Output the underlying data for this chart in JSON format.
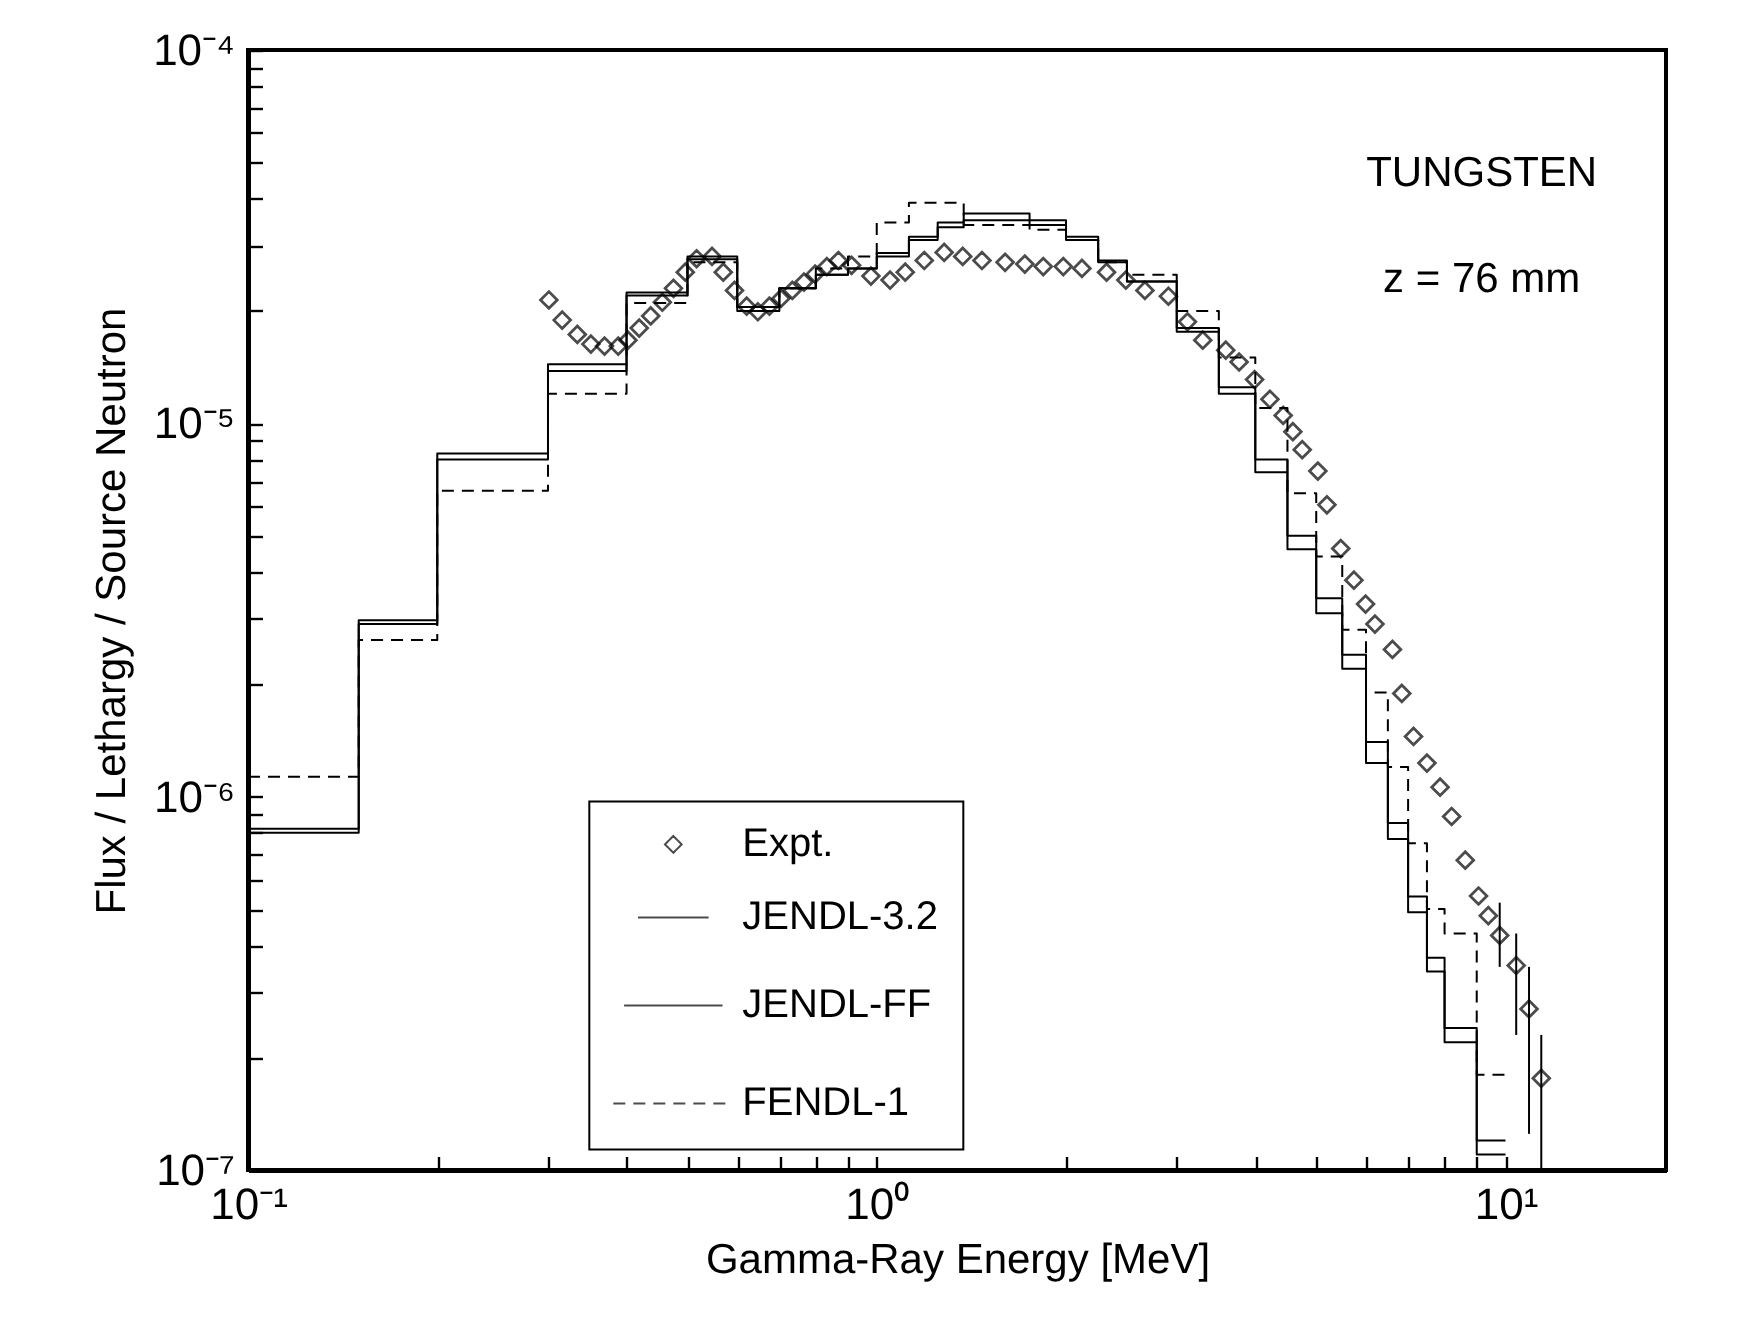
{
  "chart_data": {
    "type": "step",
    "xlabel": "Gamma-Ray Energy [MeV]",
    "ylabel": "Flux / Lethargy / Source Neutron",
    "annotations": [
      "TUNGSTEN",
      "z = 76 mm"
    ],
    "log": "xy",
    "grid": false,
    "legend": "bottom",
    "xlim": [
      0.1,
      18
    ],
    "ylim": [
      1e-07,
      0.0001
    ],
    "xticks": [
      {
        "value": 0.1,
        "label": "10⁻¹"
      },
      {
        "value": 0.2,
        "label": null
      },
      {
        "value": 0.3,
        "label": null
      },
      {
        "value": 0.4,
        "label": null
      },
      {
        "value": 0.5,
        "label": null
      },
      {
        "value": 0.6,
        "label": null
      },
      {
        "value": 0.7,
        "label": null
      },
      {
        "value": 0.8,
        "label": null
      },
      {
        "value": 0.9,
        "label": null
      },
      {
        "value": 1,
        "label": "10⁰"
      },
      {
        "value": 2,
        "label": null
      },
      {
        "value": 3,
        "label": null
      },
      {
        "value": 4,
        "label": null
      },
      {
        "value": 5,
        "label": null
      },
      {
        "value": 6,
        "label": null
      },
      {
        "value": 7,
        "label": null
      },
      {
        "value": 8,
        "label": null
      },
      {
        "value": 9,
        "label": null
      },
      {
        "value": 10,
        "label": "10¹"
      }
    ],
    "yticks": [
      {
        "value": 1e-07,
        "label": "10⁻⁷"
      },
      {
        "value": 2e-07,
        "label": null
      },
      {
        "value": 3e-07,
        "label": null
      },
      {
        "value": 4e-07,
        "label": null
      },
      {
        "value": 5e-07,
        "label": null
      },
      {
        "value": 6e-07,
        "label": null
      },
      {
        "value": 7e-07,
        "label": null
      },
      {
        "value": 8e-07,
        "label": null
      },
      {
        "value": 9e-07,
        "label": null
      },
      {
        "value": 1e-06,
        "label": "10⁻⁶"
      },
      {
        "value": 2e-06,
        "label": null
      },
      {
        "value": 3e-06,
        "label": null
      },
      {
        "value": 4e-06,
        "label": null
      },
      {
        "value": 5e-06,
        "label": null
      },
      {
        "value": 6e-06,
        "label": null
      },
      {
        "value": 7e-06,
        "label": null
      },
      {
        "value": 8e-06,
        "label": null
      },
      {
        "value": 9e-06,
        "label": null
      },
      {
        "value": 1e-05,
        "label": "10⁻⁵"
      },
      {
        "value": 2e-05,
        "label": null
      },
      {
        "value": 3e-05,
        "label": null
      },
      {
        "value": 4e-05,
        "label": null
      },
      {
        "value": 5e-05,
        "label": null
      },
      {
        "value": 6e-05,
        "label": null
      },
      {
        "value": 7e-05,
        "label": null
      },
      {
        "value": 8e-05,
        "label": null
      },
      {
        "value": 9e-05,
        "label": null
      },
      {
        "value": 0.0001,
        "label": "10⁻⁴"
      }
    ],
    "series": [
      {
        "name": "Expt.",
        "type": "scatter",
        "marker": "diamond",
        "color": "#000000",
        "x": [
          0.301,
          0.316,
          0.334,
          0.351,
          0.369,
          0.388,
          0.402,
          0.419,
          0.437,
          0.456,
          0.475,
          0.496,
          0.517,
          0.547,
          0.57,
          0.594,
          0.621,
          0.647,
          0.675,
          0.704,
          0.734,
          0.766,
          0.798,
          0.833,
          0.869,
          0.912,
          0.979,
          1.05,
          1.11,
          1.19,
          1.28,
          1.37,
          1.47,
          1.6,
          1.72,
          1.84,
          1.98,
          2.12,
          2.32,
          2.49,
          2.67,
          2.91,
          3.12,
          3.3,
          3.59,
          3.77,
          3.99,
          4.22,
          4.43,
          4.59,
          4.75,
          5.03,
          5.2,
          5.47,
          5.74,
          5.99,
          6.2,
          6.61,
          6.84,
          7.14,
          7.5,
          7.87,
          8.21,
          8.63,
          9.06,
          9.39,
          9.79,
          10.4,
          10.9,
          11.4
        ],
        "values": [
          2.14e-05,
          1.89e-05,
          1.73e-05,
          1.63e-05,
          1.61e-05,
          1.61e-05,
          1.67e-05,
          1.8e-05,
          1.94e-05,
          2.11e-05,
          2.3e-05,
          2.54e-05,
          2.76e-05,
          2.8e-05,
          2.54e-05,
          2.27e-05,
          2.06e-05,
          1.99e-05,
          2.06e-05,
          2.16e-05,
          2.27e-05,
          2.39e-05,
          2.51e-05,
          2.63e-05,
          2.73e-05,
          2.65e-05,
          2.48e-05,
          2.42e-05,
          2.54e-05,
          2.73e-05,
          2.87e-05,
          2.8e-05,
          2.73e-05,
          2.7e-05,
          2.67e-05,
          2.63e-05,
          2.63e-05,
          2.6e-05,
          2.54e-05,
          2.42e-05,
          2.27e-05,
          2.19e-05,
          1.87e-05,
          1.67e-05,
          1.57e-05,
          1.46e-05,
          1.31e-05,
          1.16e-05,
          1.05e-05,
          9.5e-06,
          8.5e-06,
          7.45e-06,
          6.05e-06,
          4.62e-06,
          3.8e-06,
          3.28e-06,
          2.9e-06,
          2.48e-06,
          1.89e-06,
          1.45e-06,
          1.23e-06,
          1.06e-06,
          8.85e-07,
          6.76e-07,
          5.42e-07,
          4.8e-07,
          4.25e-07,
          3.53e-07,
          2.7e-07,
          1.76e-07
        ],
        "errors": [
          null,
          null,
          null,
          null,
          null,
          null,
          null,
          null,
          null,
          null,
          null,
          null,
          null,
          null,
          null,
          null,
          null,
          null,
          null,
          null,
          null,
          null,
          null,
          null,
          null,
          null,
          null,
          null,
          null,
          null,
          null,
          null,
          null,
          null,
          null,
          null,
          null,
          null,
          null,
          null,
          null,
          null,
          null,
          null,
          null,
          null,
          null,
          null,
          null,
          null,
          null,
          null,
          null,
          null,
          null,
          null,
          null,
          null,
          null,
          null,
          null,
          null,
          null,
          null,
          null,
          null,
          [
            3.5e-07,
            5.2e-07
          ],
          [
            2.3e-07,
            4.3e-07
          ],
          [
            1.25e-07,
            3.5e-07
          ],
          [
            1e-07,
            2.3e-07
          ]
        ]
      },
      {
        "name": "JENDL-3.2",
        "type": "step",
        "line_style": "solid",
        "color": "#000000",
        "x": [
          0.1,
          0.15,
          0.2,
          0.3,
          0.4,
          0.5,
          0.6,
          0.7,
          0.8,
          0.9,
          1.0,
          1.125,
          1.25,
          1.375,
          1.75,
          2.0,
          2.25,
          2.5,
          3.0,
          3.5,
          4.0,
          4.5,
          5.0,
          5.5,
          6.0,
          6.5,
          7.0,
          7.5,
          8.0,
          9.0,
          10.0
        ],
        "values": [
          8.2e-07,
          2.9e-06,
          8e-06,
          1.38e-05,
          2.2e-05,
          2.75e-05,
          2.05e-05,
          2.3e-05,
          2.5e-05,
          2.6e-05,
          2.8e-05,
          3.1e-05,
          3.35e-05,
          3.5e-05,
          3.4e-05,
          3.1e-05,
          2.7e-05,
          2.4e-05,
          1.8e-05,
          1.25e-05,
          8e-06,
          5e-06,
          3.4e-06,
          2.4e-06,
          1.4e-06,
          8.5e-07,
          5.4e-07,
          3.7e-07,
          2.4e-07,
          1.2e-07,
          1.2e-07
        ]
      },
      {
        "name": "JENDL-FF",
        "type": "step",
        "line_style": "solid",
        "color": "#000000",
        "x": [
          0.1,
          0.15,
          0.2,
          0.3,
          0.4,
          0.5,
          0.6,
          0.7,
          0.8,
          0.9,
          1.0,
          1.125,
          1.25,
          1.375,
          1.75,
          2.0,
          2.25,
          2.5,
          3.0,
          3.5,
          4.0,
          4.5,
          5.0,
          5.5,
          6.0,
          6.5,
          7.0,
          7.5,
          8.0,
          9.0,
          10.0
        ],
        "values": [
          8e-07,
          2.97e-06,
          8.3e-06,
          1.44e-05,
          2.24e-05,
          2.8e-05,
          2e-05,
          2.3e-05,
          2.5e-05,
          2.6e-05,
          2.86e-05,
          3.16e-05,
          3.45e-05,
          3.65e-05,
          3.5e-05,
          3.16e-05,
          2.73e-05,
          2.4e-05,
          1.76e-05,
          1.2e-05,
          7.4e-06,
          4.6e-06,
          3.1e-06,
          2.2e-06,
          1.23e-06,
          7.7e-07,
          4.9e-07,
          3.4e-07,
          2.2e-07,
          1.1e-07,
          1.1e-07
        ]
      },
      {
        "name": "FENDL-1",
        "type": "step",
        "line_style": "dashed",
        "color": "#000000",
        "x": [
          0.1,
          0.15,
          0.2,
          0.3,
          0.4,
          0.5,
          0.6,
          0.7,
          0.8,
          0.9,
          1.0,
          1.125,
          1.25,
          1.375,
          1.75,
          2.0,
          2.25,
          2.5,
          3.0,
          3.5,
          4.0,
          4.5,
          5.0,
          5.5,
          6.0,
          6.5,
          7.0,
          7.5,
          8.0,
          9.0,
          10.0
        ],
        "values": [
          1.13e-06,
          2.63e-06,
          6.6e-06,
          1.2e-05,
          2.1e-05,
          2.7e-05,
          2.05e-05,
          2.3e-05,
          2.6e-05,
          2.8e-05,
          3.45e-05,
          3.9e-05,
          3.9e-05,
          3.4e-05,
          3.3e-05,
          3.1e-05,
          2.7e-05,
          2.5e-05,
          2e-05,
          1.5e-05,
          1.1e-05,
          6.5e-06,
          4.4e-06,
          2.8e-06,
          1.9e-06,
          1.2e-06,
          7.5e-07,
          5e-07,
          4.3e-07,
          1.8e-07,
          1.8e-07
        ]
      }
    ]
  }
}
